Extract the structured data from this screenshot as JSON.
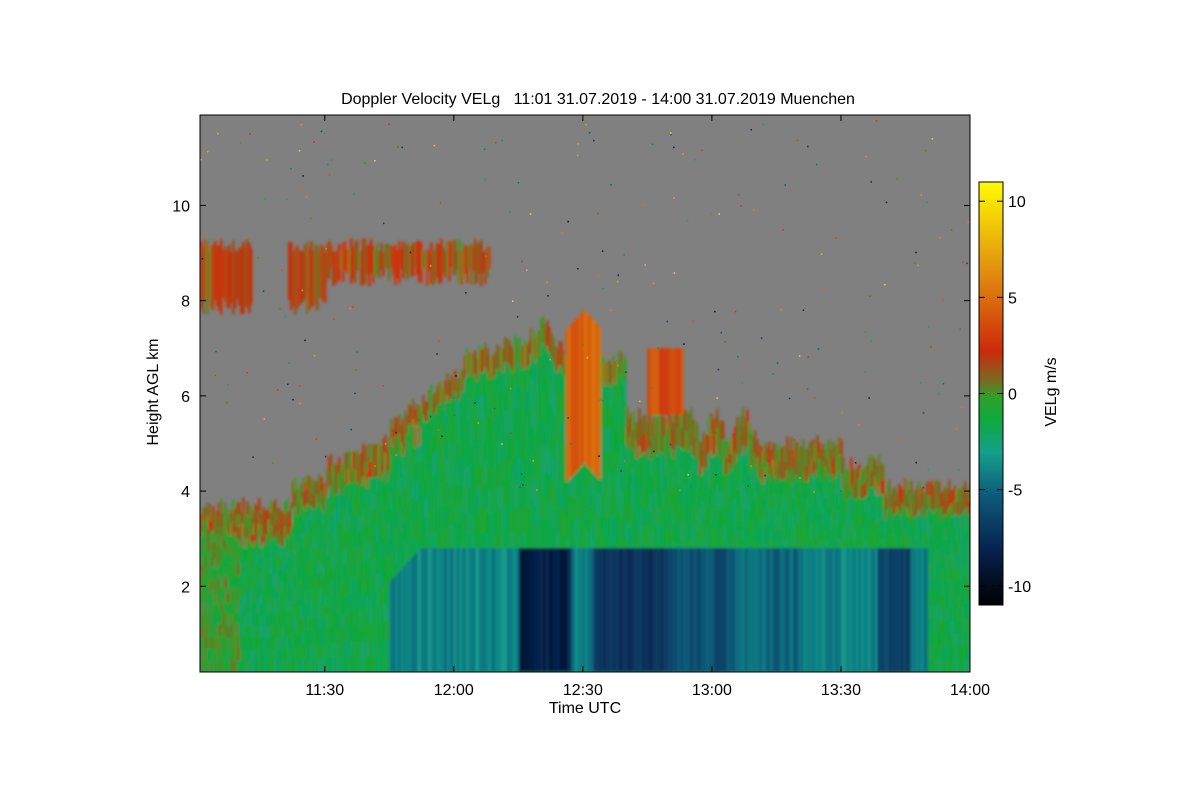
{
  "chart_data": {
    "type": "heatmap",
    "title": "Doppler Velocity VELg   11:01 31.07.2019 - 14:00 31.07.2019 Muenchen",
    "xlabel": "Time UTC",
    "ylabel": "Height AGL km",
    "colorbar_label": "VELg m/s",
    "x_range": [
      "11:01",
      "14:00"
    ],
    "x_ticks": [
      "11:30",
      "12:00",
      "12:30",
      "13:00",
      "13:30",
      "14:00"
    ],
    "y_range_km": [
      0.2,
      11.9
    ],
    "y_ticks": [
      2,
      4,
      6,
      8,
      10
    ],
    "colorbar_range": [
      -11,
      11
    ],
    "colorbar_ticks": [
      10,
      5,
      0,
      -5,
      -10
    ],
    "colormap": [
      "#000000",
      "#07224f",
      "#0c5b7a",
      "#14a08c",
      "#0fa83c",
      "#2da12a",
      "#7a6a22",
      "#cc2a0a",
      "#e08a10",
      "#fffc00"
    ],
    "background_color": "#808080",
    "features": [
      {
        "kind": "cloud_layer",
        "time_start": "11:01",
        "time_end": "12:08",
        "height_km": [
          7.8,
          9.3
        ],
        "velocity_ms": 1.5
      },
      {
        "kind": "convective_cloud",
        "time_start": "11:01",
        "time_end": "14:00",
        "height_km": [
          0.2,
          7.8
        ],
        "velocity_ms": -1.5
      },
      {
        "kind": "precipitation_downdraft",
        "time_start": "12:15",
        "time_end": "13:50",
        "height_km": [
          0.2,
          2.8
        ],
        "velocity_ms": -7.5
      },
      {
        "kind": "updraft_core",
        "time_start": "12:26",
        "time_end": "12:34",
        "height_km": [
          4.5,
          7.8
        ],
        "velocity_ms": 3.5
      }
    ]
  }
}
